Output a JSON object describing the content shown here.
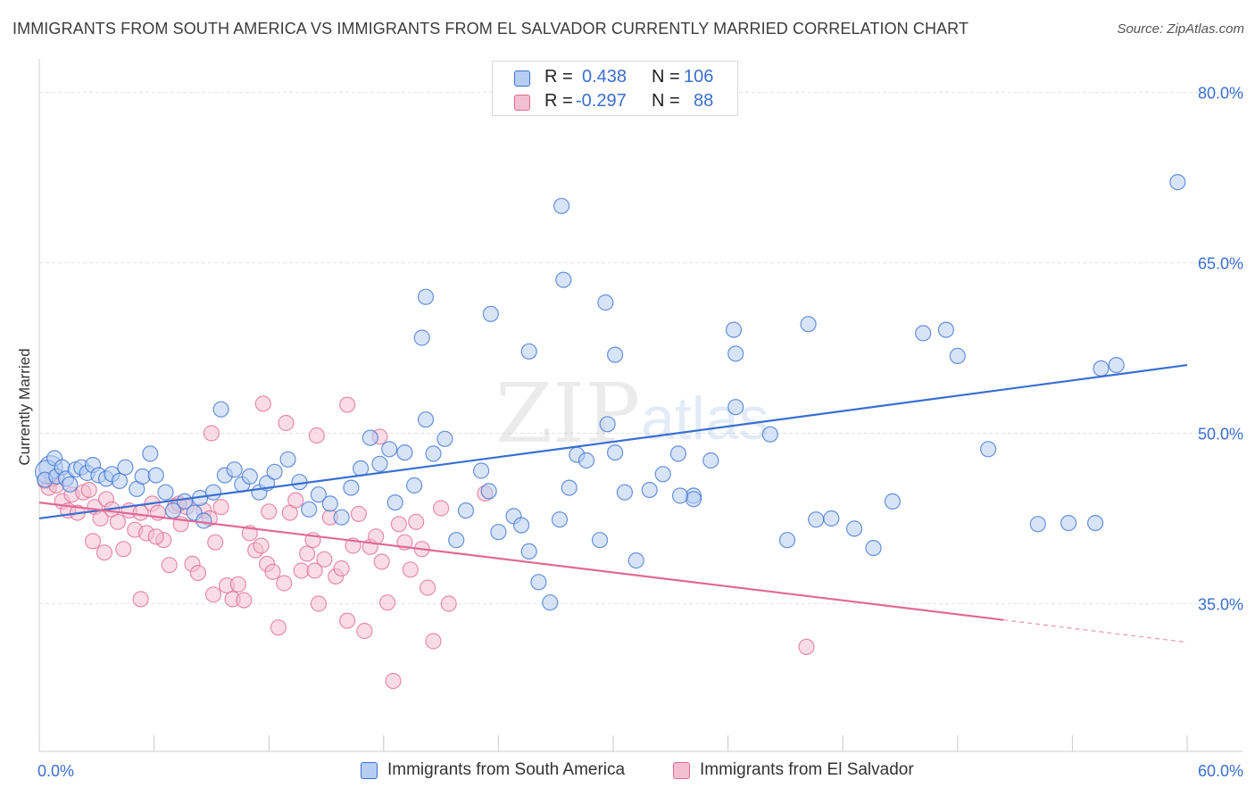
{
  "title": "IMMIGRANTS FROM SOUTH AMERICA VS IMMIGRANTS FROM EL SALVADOR CURRENTLY MARRIED CORRELATION CHART",
  "source": "Source: ZipAtlas.com",
  "watermark": {
    "zip": "ZIP",
    "atlas": "atlas"
  },
  "stats": {
    "r_label": "R =",
    "n_label": "N =",
    "rows": [
      {
        "r": "0.438",
        "n": "106"
      },
      {
        "r": "-0.297",
        "n": "88"
      }
    ]
  },
  "legend": [
    "Immigrants from South America",
    "Immigrants from El Salvador"
  ],
  "colors": {
    "blue": "#3a6fd0",
    "blue_fill": "#b7cdf2",
    "pink": "#e06a95",
    "pink_fill": "#f4bfd0",
    "grid": "#e3e3e3",
    "tick_text": "#3a6fd0"
  },
  "chart_data": {
    "type": "scatter",
    "ylabel": "Currently Married",
    "xlim": [
      0,
      60
    ],
    "ylim": [
      22,
      82
    ],
    "x_tick_labels": [
      "0.0%",
      "60.0%"
    ],
    "y_ticks": [
      35,
      50,
      65,
      80
    ],
    "y_tick_labels": [
      "35.0%",
      "50.0%",
      "65.0%",
      "80.0%"
    ],
    "series": [
      {
        "name": "Immigrants from South America",
        "trend": {
          "x": [
            0,
            60
          ],
          "y": [
            42.5,
            56.0
          ],
          "solid_to": 60
        },
        "points": [
          [
            0.6,
            47.0
          ],
          [
            0.4,
            46.6
          ],
          [
            0.8,
            47.8
          ],
          [
            0.3,
            45.9
          ],
          [
            0.9,
            46.2
          ],
          [
            1.2,
            47.0
          ],
          [
            1.4,
            46.0
          ],
          [
            1.6,
            45.5
          ],
          [
            1.9,
            46.8
          ],
          [
            2.2,
            47.0
          ],
          [
            2.5,
            46.5
          ],
          [
            2.8,
            47.2
          ],
          [
            3.1,
            46.3
          ],
          [
            3.5,
            46.0
          ],
          [
            3.8,
            46.4
          ],
          [
            4.2,
            45.8
          ],
          [
            4.5,
            47.0
          ],
          [
            5.1,
            45.1
          ],
          [
            5.4,
            46.2
          ],
          [
            5.8,
            48.2
          ],
          [
            6.1,
            46.3
          ],
          [
            6.6,
            44.8
          ],
          [
            7.0,
            43.2
          ],
          [
            7.6,
            44.0
          ],
          [
            8.1,
            43.0
          ],
          [
            8.6,
            42.3
          ],
          [
            8.4,
            44.3
          ],
          [
            9.1,
            44.8
          ],
          [
            9.5,
            52.1
          ],
          [
            9.7,
            46.3
          ],
          [
            10.2,
            46.8
          ],
          [
            10.6,
            45.5
          ],
          [
            11.0,
            46.2
          ],
          [
            11.5,
            44.8
          ],
          [
            11.9,
            45.6
          ],
          [
            12.3,
            46.6
          ],
          [
            13.0,
            47.7
          ],
          [
            13.6,
            45.7
          ],
          [
            14.1,
            43.3
          ],
          [
            14.6,
            44.6
          ],
          [
            15.2,
            43.8
          ],
          [
            15.8,
            42.6
          ],
          [
            16.3,
            45.2
          ],
          [
            16.8,
            46.9
          ],
          [
            17.3,
            49.6
          ],
          [
            17.8,
            47.3
          ],
          [
            18.3,
            48.6
          ],
          [
            18.6,
            43.9
          ],
          [
            19.1,
            48.3
          ],
          [
            19.6,
            45.4
          ],
          [
            20.2,
            51.2
          ],
          [
            20.6,
            48.2
          ],
          [
            21.2,
            49.5
          ],
          [
            21.8,
            40.6
          ],
          [
            22.3,
            43.2
          ],
          [
            23.1,
            46.7
          ],
          [
            23.5,
            44.9
          ],
          [
            24.0,
            41.3
          ],
          [
            24.8,
            42.7
          ],
          [
            25.2,
            41.9
          ],
          [
            25.6,
            39.6
          ],
          [
            26.1,
            36.9
          ],
          [
            26.7,
            35.1
          ],
          [
            27.2,
            42.4
          ],
          [
            27.7,
            45.2
          ],
          [
            28.1,
            48.1
          ],
          [
            28.6,
            47.6
          ],
          [
            29.3,
            40.6
          ],
          [
            30.1,
            48.3
          ],
          [
            30.6,
            44.8
          ],
          [
            31.2,
            38.8
          ],
          [
            31.9,
            45.0
          ],
          [
            32.6,
            46.4
          ],
          [
            33.4,
            48.2
          ],
          [
            34.2,
            44.5
          ],
          [
            35.1,
            47.6
          ],
          [
            36.4,
            52.3
          ],
          [
            38.2,
            49.9
          ],
          [
            39.1,
            40.6
          ],
          [
            40.6,
            42.4
          ],
          [
            41.4,
            42.5
          ],
          [
            42.6,
            41.6
          ],
          [
            43.6,
            39.9
          ],
          [
            44.6,
            44.0
          ],
          [
            46.2,
            58.8
          ],
          [
            47.4,
            59.1
          ],
          [
            48.0,
            56.8
          ],
          [
            49.6,
            48.6
          ],
          [
            52.2,
            42.0
          ],
          [
            53.8,
            42.1
          ],
          [
            55.2,
            42.1
          ],
          [
            59.5,
            72.1
          ],
          [
            56.3,
            56.0
          ],
          [
            55.5,
            55.7
          ],
          [
            27.3,
            70.0
          ],
          [
            29.6,
            61.5
          ],
          [
            36.3,
            59.1
          ],
          [
            25.6,
            57.2
          ],
          [
            27.4,
            63.5
          ],
          [
            30.1,
            56.9
          ],
          [
            29.7,
            50.8
          ],
          [
            36.4,
            57.0
          ],
          [
            23.6,
            60.5
          ],
          [
            40.2,
            59.6
          ],
          [
            20.2,
            62.0
          ],
          [
            20.0,
            58.4
          ],
          [
            34.2,
            44.2
          ],
          [
            33.5,
            44.5
          ]
        ]
      },
      {
        "name": "Immigrants from El Salvador",
        "trend": {
          "x": [
            0,
            60
          ],
          "y": [
            43.9,
            31.6
          ],
          "solid_to": 50.4
        },
        "points": [
          [
            0.3,
            45.8
          ],
          [
            0.5,
            45.2
          ],
          [
            0.7,
            46.0
          ],
          [
            0.9,
            45.4
          ],
          [
            1.2,
            44.0
          ],
          [
            1.5,
            43.2
          ],
          [
            1.7,
            44.6
          ],
          [
            2.0,
            43.0
          ],
          [
            2.3,
            44.8
          ],
          [
            2.6,
            45.0
          ],
          [
            2.9,
            43.5
          ],
          [
            3.2,
            42.5
          ],
          [
            3.5,
            44.2
          ],
          [
            3.8,
            43.3
          ],
          [
            4.1,
            42.2
          ],
          [
            4.4,
            39.8
          ],
          [
            4.7,
            43.2
          ],
          [
            5.0,
            41.5
          ],
          [
            5.3,
            43.0
          ],
          [
            5.6,
            41.2
          ],
          [
            5.9,
            43.8
          ],
          [
            6.2,
            43.0
          ],
          [
            6.5,
            40.6
          ],
          [
            6.8,
            38.4
          ],
          [
            7.1,
            43.6
          ],
          [
            7.4,
            42.0
          ],
          [
            7.7,
            43.5
          ],
          [
            8.0,
            38.5
          ],
          [
            8.3,
            37.7
          ],
          [
            8.6,
            43.2
          ],
          [
            8.9,
            42.5
          ],
          [
            9.2,
            40.4
          ],
          [
            9.5,
            43.5
          ],
          [
            9.8,
            36.6
          ],
          [
            10.1,
            35.4
          ],
          [
            10.4,
            36.7
          ],
          [
            10.7,
            35.3
          ],
          [
            11.0,
            41.2
          ],
          [
            11.3,
            39.7
          ],
          [
            11.6,
            40.1
          ],
          [
            11.9,
            38.5
          ],
          [
            12.2,
            37.8
          ],
          [
            12.5,
            32.9
          ],
          [
            12.8,
            36.8
          ],
          [
            13.1,
            43.0
          ],
          [
            13.4,
            44.1
          ],
          [
            13.7,
            37.9
          ],
          [
            14.0,
            39.4
          ],
          [
            14.3,
            40.6
          ],
          [
            14.6,
            35.0
          ],
          [
            14.9,
            38.9
          ],
          [
            15.2,
            42.6
          ],
          [
            15.5,
            37.4
          ],
          [
            15.8,
            38.1
          ],
          [
            16.1,
            33.5
          ],
          [
            16.4,
            40.1
          ],
          [
            16.7,
            42.9
          ],
          [
            17.0,
            32.6
          ],
          [
            17.3,
            40.0
          ],
          [
            17.6,
            40.9
          ],
          [
            17.9,
            38.7
          ],
          [
            18.2,
            35.1
          ],
          [
            18.5,
            28.2
          ],
          [
            18.8,
            42.0
          ],
          [
            19.1,
            40.4
          ],
          [
            19.4,
            38.0
          ],
          [
            19.7,
            42.2
          ],
          [
            20.0,
            39.8
          ],
          [
            20.3,
            36.4
          ],
          [
            20.6,
            31.7
          ],
          [
            21.0,
            43.4
          ],
          [
            2.8,
            40.5
          ],
          [
            3.4,
            39.5
          ],
          [
            6.1,
            40.9
          ],
          [
            9.1,
            35.8
          ],
          [
            12.0,
            43.1
          ],
          [
            5.3,
            35.4
          ],
          [
            7.3,
            43.8
          ],
          [
            14.4,
            37.9
          ],
          [
            16.1,
            52.5
          ],
          [
            14.5,
            49.8
          ],
          [
            17.8,
            49.7
          ],
          [
            12.9,
            50.9
          ],
          [
            9.0,
            50.0
          ],
          [
            11.7,
            52.6
          ],
          [
            23.3,
            44.7
          ],
          [
            40.1,
            31.2
          ],
          [
            21.4,
            35.0
          ]
        ]
      }
    ]
  }
}
